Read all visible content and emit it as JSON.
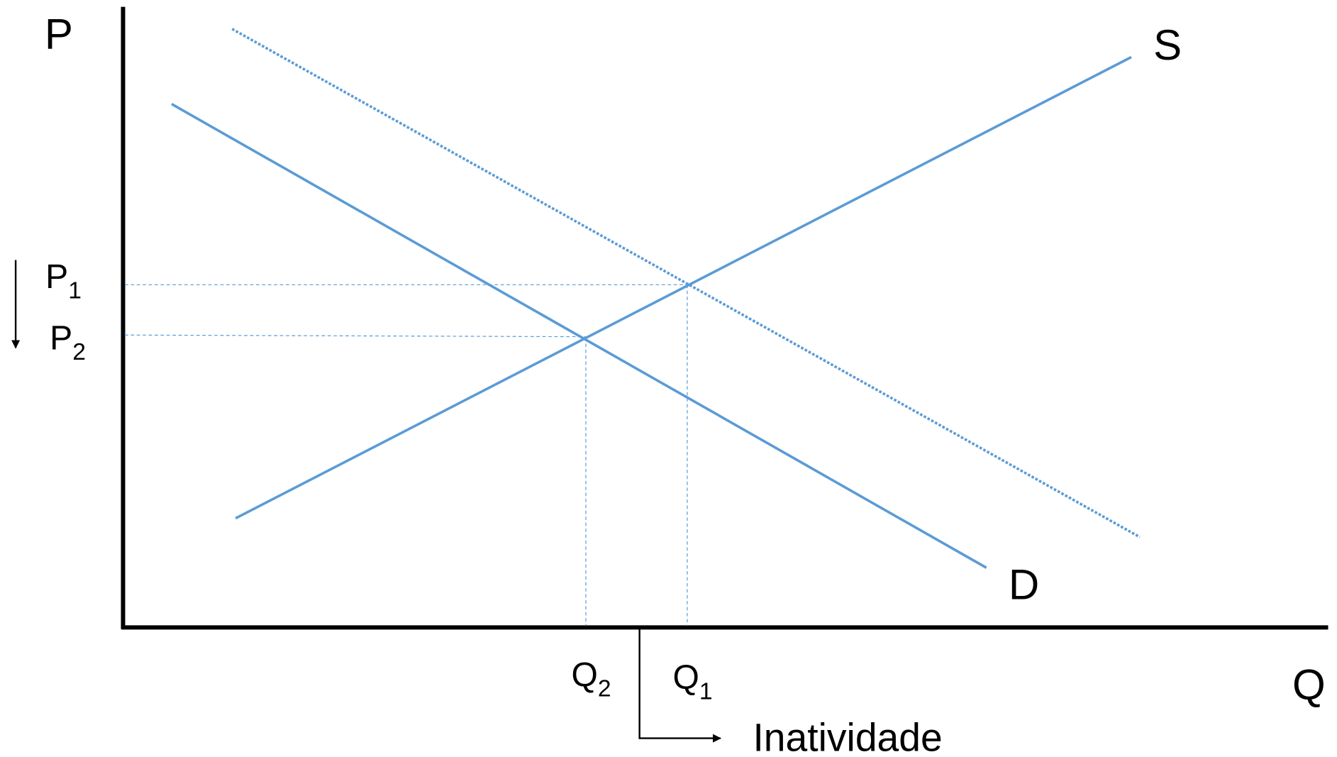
{
  "axes": {
    "y_label": "P",
    "x_label": "Q"
  },
  "curves": {
    "supply": "S",
    "demand": "D"
  },
  "prices": [
    {
      "base": "P",
      "sub": "1"
    },
    {
      "base": "P",
      "sub": "2"
    }
  ],
  "quantities": [
    {
      "base": "Q",
      "sub": "1"
    },
    {
      "base": "Q",
      "sub": "2"
    }
  ],
  "annotation": "Inatividade"
}
